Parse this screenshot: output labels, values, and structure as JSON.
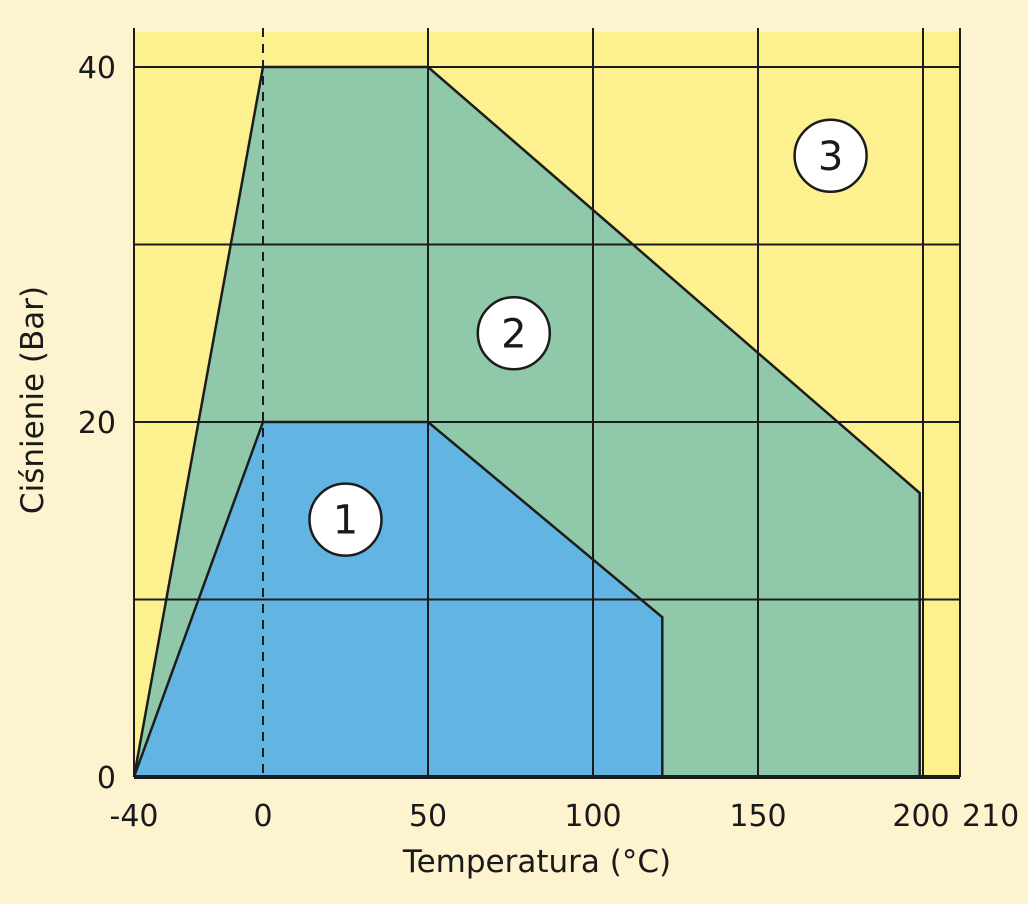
{
  "chart_data": {
    "type": "area",
    "xlabel": "Temperatura (°C)",
    "ylabel": "Ciśnienie (Bar)",
    "x_ticks": [
      {
        "value": -40,
        "label": "-40"
      },
      {
        "value": 0,
        "label": "0"
      },
      {
        "value": 50,
        "label": "50"
      },
      {
        "value": 100,
        "label": "100"
      },
      {
        "value": 150,
        "label": "150"
      },
      {
        "value": 200,
        "label": "200"
      },
      {
        "value": 210,
        "label": "210"
      }
    ],
    "y_ticks": [
      {
        "value": 0,
        "label": "0"
      },
      {
        "value": 20,
        "label": "20"
      },
      {
        "value": 40,
        "label": "40"
      }
    ],
    "xlim": [
      -40,
      210
    ],
    "ylim": [
      0,
      40
    ],
    "grid": true,
    "vertical_grid_x": [
      50,
      100,
      150,
      200
    ],
    "horizontal_grid_y": [
      10,
      20,
      30,
      40
    ],
    "dashed_reference_x": 0,
    "regions": [
      {
        "name": "3",
        "label": "3",
        "color": "#fdf08f",
        "label_at": [
          172,
          35
        ],
        "points": [
          [
            -40,
            0
          ],
          [
            210,
            0
          ],
          [
            210,
            42
          ],
          [
            -40,
            42
          ]
        ]
      },
      {
        "name": "2",
        "label": "2",
        "color": "#8fc9a9",
        "label_at": [
          76,
          25
        ],
        "points": [
          [
            -40,
            0
          ],
          [
            0,
            40
          ],
          [
            50,
            40
          ],
          [
            199,
            16
          ],
          [
            199,
            0
          ]
        ]
      },
      {
        "name": "1",
        "label": "1",
        "color": "#62b5e3",
        "label_at": [
          25,
          14.5
        ],
        "points": [
          [
            -40,
            0
          ],
          [
            0,
            20
          ],
          [
            50,
            20
          ],
          [
            121,
            9
          ],
          [
            121,
            0
          ]
        ]
      }
    ]
  }
}
